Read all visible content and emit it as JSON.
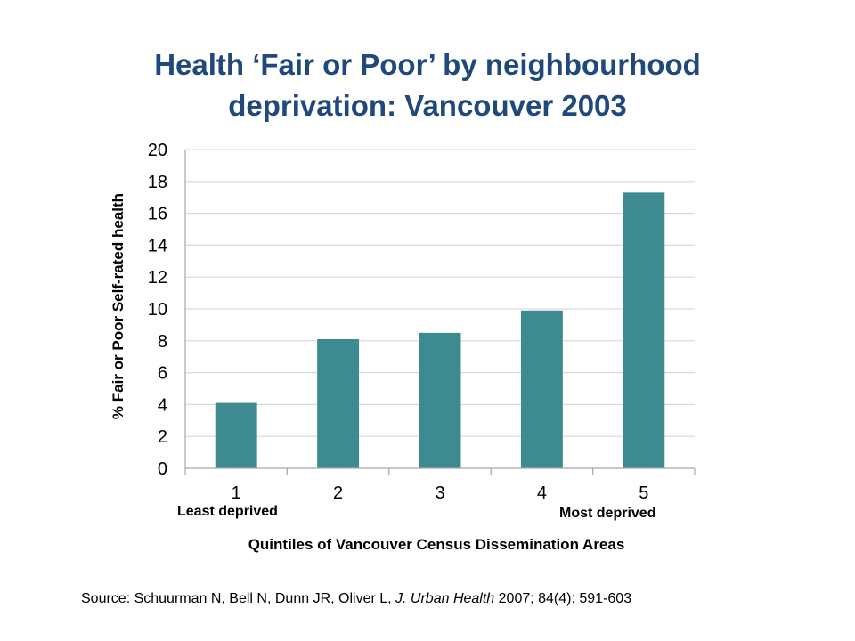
{
  "chart_data": {
    "type": "bar",
    "title_lines": [
      "Health ‘Fair or Poor’ by neighbourhood",
      "deprivation: Vancouver 2003"
    ],
    "categories": [
      "1",
      "2",
      "3",
      "4",
      "5"
    ],
    "values": [
      4.1,
      8.1,
      8.5,
      9.9,
      17.3
    ],
    "ylabel": "% Fair or Poor  Self-rated health",
    "xlabel": "Quintiles of Vancouver Census Dissemination Areas",
    "ylim": [
      0,
      20
    ],
    "yticks": [
      0,
      2,
      4,
      6,
      8,
      10,
      12,
      14,
      16,
      18,
      20
    ],
    "grid": "horizontal",
    "legend": "none",
    "bar_color": "#3d8b91",
    "annotations": {
      "least": "Least deprived",
      "most": "Most deprived"
    }
  },
  "source": {
    "prefix": "Source: Schuurman N, Bell N, Dunn JR, Oliver L, ",
    "journal": "J. Urban Health",
    "suffix": " 2007; 84(4): 591-603"
  },
  "colors": {
    "title": "#1f497d",
    "grid": "#d9d9d9",
    "axis": "#a6a6a6"
  }
}
